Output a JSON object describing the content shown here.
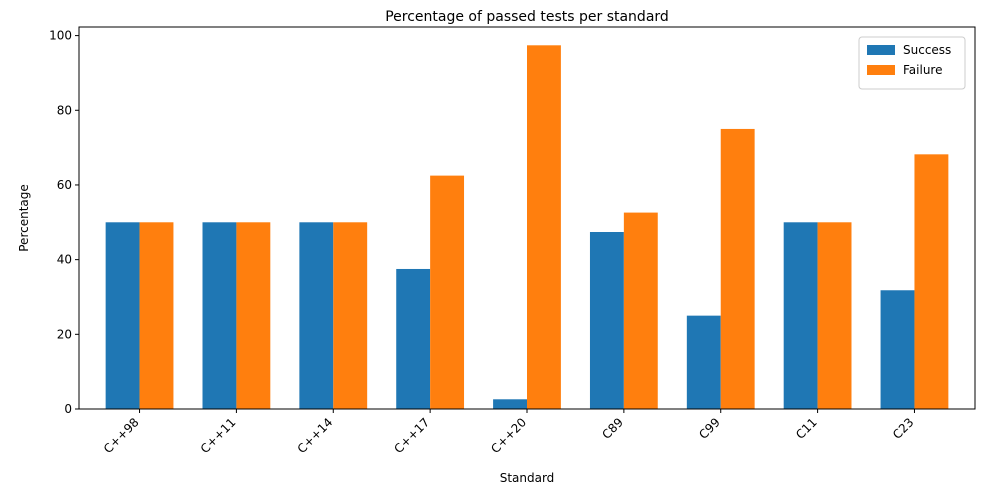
{
  "chart_data": {
    "type": "bar",
    "title": "Percentage of passed tests per standard",
    "xlabel": "Standard",
    "ylabel": "Percentage",
    "categories": [
      "C++98",
      "C++11",
      "C++14",
      "C++17",
      "C++20",
      "C89",
      "C99",
      "C11",
      "C23"
    ],
    "series": [
      {
        "name": "Success",
        "color": "#1f77b4",
        "values": [
          50,
          50,
          50,
          37.5,
          2.6,
          47.4,
          25,
          50,
          31.8
        ]
      },
      {
        "name": "Failure",
        "color": "#ff7f0e",
        "values": [
          50,
          50,
          50,
          62.5,
          97.4,
          52.6,
          75,
          50,
          68.2
        ]
      }
    ],
    "ylim": [
      0,
      102.3
    ],
    "yticks": [
      0,
      20,
      40,
      60,
      80,
      100
    ],
    "legend_position": "top-right",
    "grid": false
  }
}
